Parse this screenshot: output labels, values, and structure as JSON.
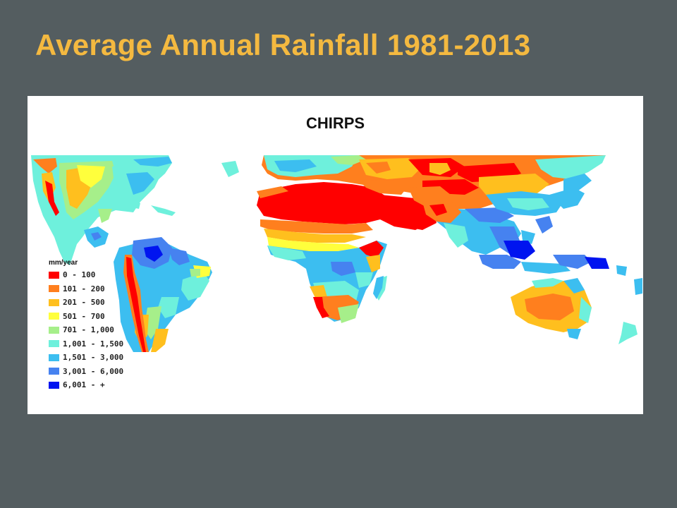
{
  "slide": {
    "title": "Average Annual Rainfall 1981-2013"
  },
  "map": {
    "title": "CHIRPS",
    "legend": {
      "title": "mm/year",
      "items": [
        {
          "label": "0 - 100",
          "color": "#ff0000"
        },
        {
          "label": "101 - 200",
          "color": "#ff7f1e"
        },
        {
          "label": "201 - 500",
          "color": "#ffbf1e"
        },
        {
          "label": "501 - 700",
          "color": "#ffff3c"
        },
        {
          "label": "701 - 1,000",
          "color": "#a6ef8a"
        },
        {
          "label": "1,001 - 1,500",
          "color": "#6ef0dc"
        },
        {
          "label": "1,501 - 3,000",
          "color": "#3cbef0"
        },
        {
          "label": "3,001 - 6,000",
          "color": "#4682f0"
        },
        {
          "label": "6,001 - +",
          "color": "#0014f0"
        }
      ]
    }
  }
}
